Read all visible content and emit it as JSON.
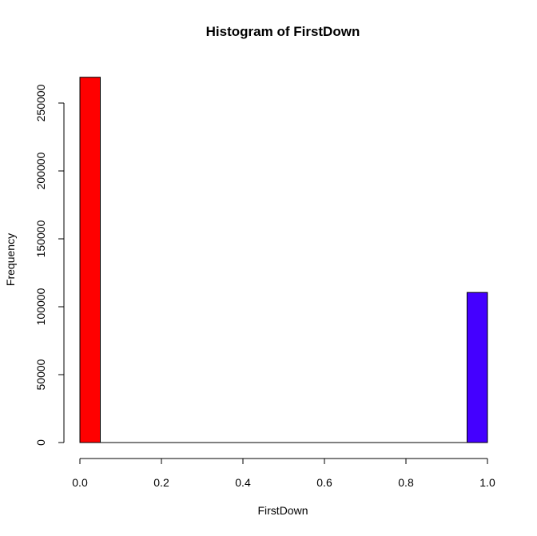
{
  "chart_data": {
    "type": "bar",
    "title": "Histogram of FirstDown",
    "xlabel": "FirstDown",
    "ylabel": "Frequency",
    "bins": [
      {
        "x0": 0.0,
        "x1": 0.05,
        "value": 269000,
        "color": "#ff0000"
      },
      {
        "x0": 0.05,
        "x1": 0.1,
        "value": 0,
        "color": "#ee0011"
      },
      {
        "x0": 0.1,
        "x1": 0.15,
        "value": 0,
        "color": "#dd0022"
      },
      {
        "x0": 0.15,
        "x1": 0.2,
        "value": 0,
        "color": "#cc0033"
      },
      {
        "x0": 0.2,
        "x1": 0.25,
        "value": 0,
        "color": "#bb0044"
      },
      {
        "x0": 0.25,
        "x1": 0.3,
        "value": 0,
        "color": "#aa0055"
      },
      {
        "x0": 0.3,
        "x1": 0.35,
        "value": 0,
        "color": "#990066"
      },
      {
        "x0": 0.35,
        "x1": 0.4,
        "value": 0,
        "color": "#880077"
      },
      {
        "x0": 0.4,
        "x1": 0.45,
        "value": 0,
        "color": "#770088"
      },
      {
        "x0": 0.45,
        "x1": 0.5,
        "value": 0,
        "color": "#660099"
      },
      {
        "x0": 0.5,
        "x1": 0.55,
        "value": 0,
        "color": "#5500aa"
      },
      {
        "x0": 0.55,
        "x1": 0.6,
        "value": 0,
        "color": "#4400bb"
      },
      {
        "x0": 0.6,
        "x1": 0.65,
        "value": 0,
        "color": "#3300cc"
      },
      {
        "x0": 0.65,
        "x1": 0.7,
        "value": 0,
        "color": "#2200dd"
      },
      {
        "x0": 0.7,
        "x1": 0.75,
        "value": 0,
        "color": "#1100ee"
      },
      {
        "x0": 0.75,
        "x1": 0.8,
        "value": 0,
        "color": "#0000ff"
      },
      {
        "x0": 0.8,
        "x1": 0.85,
        "value": 0,
        "color": "#1100ff"
      },
      {
        "x0": 0.85,
        "x1": 0.9,
        "value": 0,
        "color": "#2200ff"
      },
      {
        "x0": 0.9,
        "x1": 0.95,
        "value": 0,
        "color": "#3300ff"
      },
      {
        "x0": 0.95,
        "x1": 1.0,
        "value": 110500,
        "color": "#4400ff"
      }
    ],
    "xlim": [
      0,
      1.0
    ],
    "ylim": [
      0,
      269000
    ],
    "x_ticks": [
      0.0,
      0.2,
      0.4,
      0.6,
      0.8,
      1.0
    ],
    "x_tick_labels": [
      "0.0",
      "0.2",
      "0.4",
      "0.6",
      "0.8",
      "1.0"
    ],
    "y_ticks": [
      0,
      50000,
      100000,
      150000,
      200000,
      250000
    ],
    "y_tick_labels": [
      "0",
      "50000",
      "100000",
      "150000",
      "200000",
      "250000"
    ],
    "grid": false,
    "legend": "none"
  }
}
